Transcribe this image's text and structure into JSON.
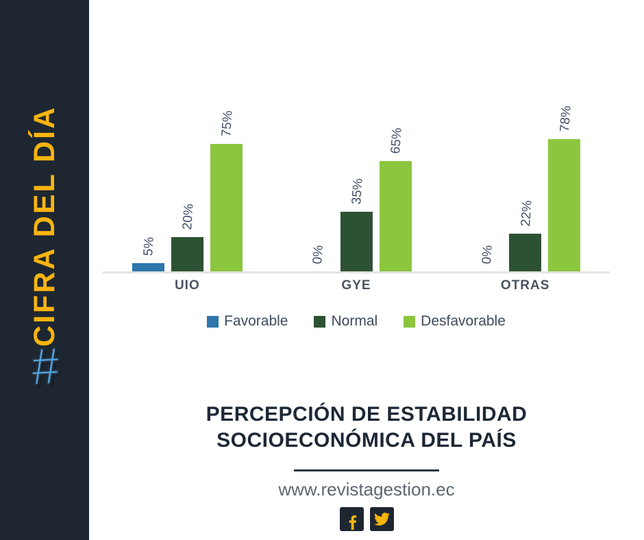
{
  "sidebar": {
    "hashtag": "#",
    "title": "CIFRA DEL DÍA"
  },
  "chart_data": {
    "type": "bar",
    "title": "",
    "xlabel": "",
    "ylabel": "",
    "categories": [
      "UIO",
      "GYE",
      "OTRAS"
    ],
    "series": [
      {
        "name": "Favorable",
        "color": "#2e76ac",
        "values": [
          5,
          0,
          0
        ]
      },
      {
        "name": "Normal",
        "color": "#2d5233",
        "values": [
          20,
          35,
          22
        ]
      },
      {
        "name": "Desfavorable",
        "color": "#8cc63e",
        "values": [
          75,
          65,
          78
        ]
      }
    ],
    "value_suffix": "%",
    "data_labels": true,
    "data_label_rotation_deg": -86,
    "ylim": [
      0,
      100
    ],
    "grid": false,
    "axis_line_color": "#e4e4e4",
    "legend_position": "bottom"
  },
  "heading": {
    "lines": [
      "PERCEPCIÓN DE ESTABILIDAD",
      "SOCIOECONÓMICA DEL PAÍS"
    ]
  },
  "footer": {
    "url": "www.revistagestion.ec",
    "social_icons": [
      "facebook-icon",
      "twitter-icon"
    ]
  },
  "colors": {
    "sidebar_bg": "#1e2731",
    "accent_yellow": "#f9b410",
    "hashtag_blue": "#4fa0d9",
    "heading_text": "#1d2836",
    "chart_text": "#44506a",
    "url_text": "#5d6670"
  }
}
